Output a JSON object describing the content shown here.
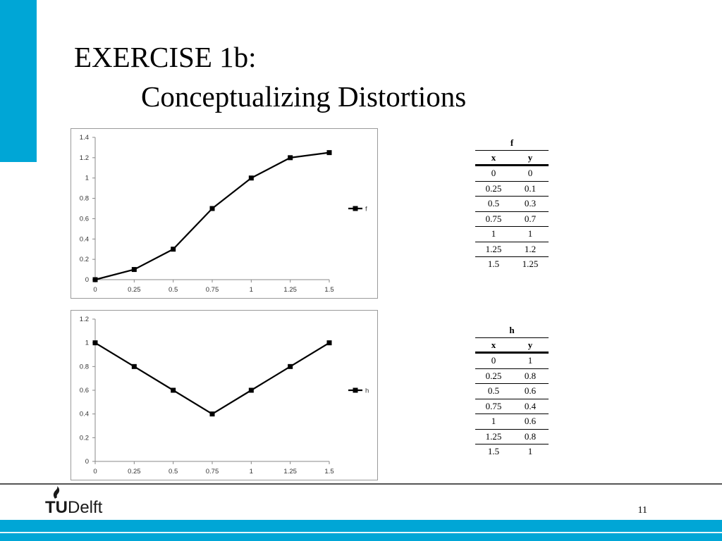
{
  "slide": {
    "title_line1": "EXERCISE 1b:",
    "title_line2": "Conceptualizing Distortions",
    "page_number": "11",
    "logo_tu": "TU",
    "logo_delft": "Delft",
    "accent_color": "#00a6d6"
  },
  "chart_data": [
    {
      "type": "line",
      "x": [
        0,
        0.25,
        0.5,
        0.75,
        1,
        1.25,
        1.5
      ],
      "series": [
        {
          "name": "f",
          "values": [
            0,
            0.1,
            0.3,
            0.7,
            1,
            1.2,
            1.25
          ]
        }
      ],
      "x_ticks": [
        "0",
        "0.25",
        "0.5",
        "0.75",
        "1",
        "1.25",
        "1.5"
      ],
      "y_ticks": [
        "0",
        "0.2",
        "0.4",
        "0.6",
        "0.8",
        "1",
        "1.2",
        "1.4"
      ],
      "ylim": [
        0,
        1.4
      ],
      "xlim": [
        0,
        1.5
      ],
      "grid": false,
      "legend": "right",
      "marker": "square",
      "color": "#000000"
    },
    {
      "type": "line",
      "x": [
        0,
        0.25,
        0.5,
        0.75,
        1,
        1.25,
        1.5
      ],
      "series": [
        {
          "name": "h",
          "values": [
            1,
            0.8,
            0.6,
            0.4,
            0.6,
            0.8,
            1
          ]
        }
      ],
      "x_ticks": [
        "0",
        "0.25",
        "0.5",
        "0.75",
        "1",
        "1.25",
        "1.5"
      ],
      "y_ticks": [
        "0",
        "0.2",
        "0.4",
        "0.6",
        "0.8",
        "1",
        "1.2"
      ],
      "ylim": [
        0,
        1.2
      ],
      "xlim": [
        0,
        1.5
      ],
      "grid": false,
      "legend": "right",
      "marker": "square",
      "color": "#000000"
    }
  ],
  "tables": [
    {
      "name": "f",
      "headers": [
        "x",
        "y"
      ],
      "rows": [
        [
          "0",
          "0"
        ],
        [
          "0.25",
          "0.1"
        ],
        [
          "0.5",
          "0.3"
        ],
        [
          "0.75",
          "0.7"
        ],
        [
          "1",
          "1"
        ],
        [
          "1.25",
          "1.2"
        ],
        [
          "1.5",
          "1.25"
        ]
      ]
    },
    {
      "name": "h",
      "headers": [
        "x",
        "y"
      ],
      "rows": [
        [
          "0",
          "1"
        ],
        [
          "0.25",
          "0.8"
        ],
        [
          "0.5",
          "0.6"
        ],
        [
          "0.75",
          "0.4"
        ],
        [
          "1",
          "0.6"
        ],
        [
          "1.25",
          "0.8"
        ],
        [
          "1.5",
          "1"
        ]
      ]
    }
  ]
}
